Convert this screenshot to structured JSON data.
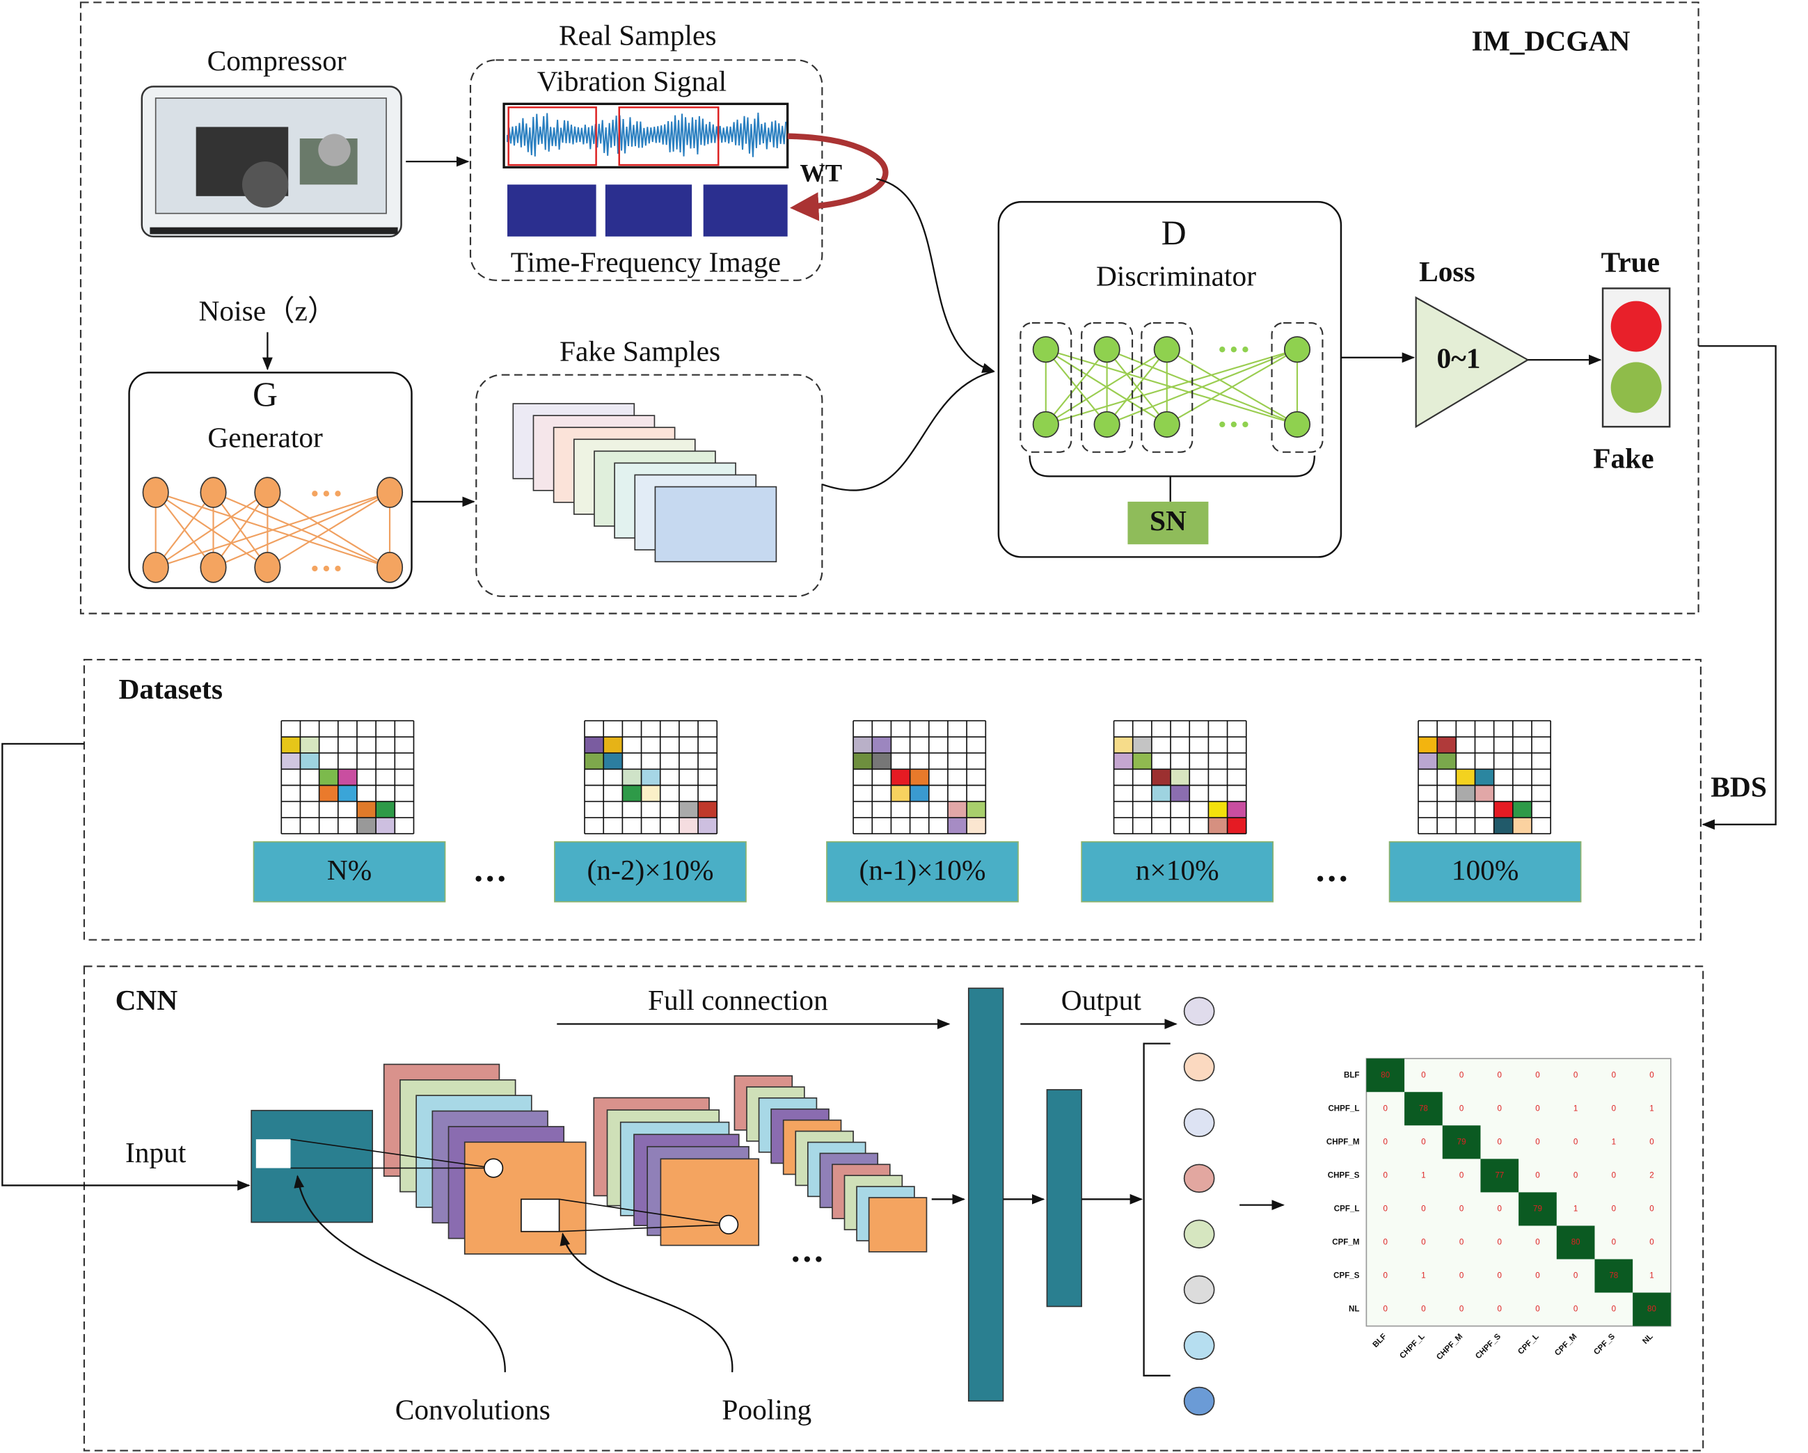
{
  "gan": {
    "title": "IM_DCGAN",
    "compressor": "Compressor",
    "real_samples": {
      "title": "Real Samples",
      "vibration": "Vibration Signal",
      "transform": "WT",
      "image": "Time-Frequency Image"
    },
    "noise": "Noise（z）",
    "generator": {
      "symbol": "G",
      "name": "Generator"
    },
    "fake_samples": "Fake Samples",
    "discriminator": {
      "symbol": "D",
      "name": "Discriminator",
      "norm": "SN"
    },
    "loss": {
      "label": "Loss",
      "range": "0~1"
    },
    "true": "True",
    "fake": "Fake",
    "feedback": "BDS"
  },
  "datasets": {
    "title": "Datasets",
    "items": [
      "N%",
      "(n-2)×10%",
      "(n-1)×10%",
      "n×10%",
      "100%"
    ]
  },
  "cnn": {
    "title": "CNN",
    "input": "Input",
    "convolutions": "Convolutions",
    "pooling": "Pooling",
    "full_connection": "Full connection",
    "output": "Output",
    "confusion_matrix": {
      "labels": [
        "BLF",
        "CHPF_L",
        "CHPF_M",
        "CHPF_S",
        "CPF_L",
        "CPF_M",
        "CPF_S",
        "NL"
      ],
      "values": [
        [
          80,
          0,
          0,
          0,
          0,
          0,
          0,
          0
        ],
        [
          0,
          78,
          0,
          0,
          0,
          1,
          0,
          1
        ],
        [
          0,
          0,
          79,
          0,
          0,
          0,
          1,
          0
        ],
        [
          0,
          1,
          0,
          77,
          0,
          0,
          0,
          2
        ],
        [
          0,
          0,
          0,
          0,
          79,
          1,
          0,
          0
        ],
        [
          0,
          0,
          0,
          0,
          0,
          80,
          0,
          0
        ],
        [
          0,
          1,
          0,
          0,
          0,
          0,
          78,
          1
        ],
        [
          0,
          0,
          0,
          0,
          0,
          0,
          0,
          80
        ]
      ]
    }
  }
}
